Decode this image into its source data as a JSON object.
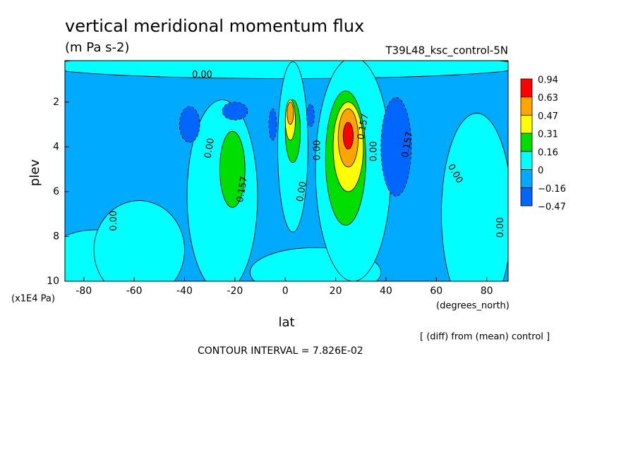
{
  "chart_data": {
    "type": "contour",
    "title": "vertical meridional momentum flux",
    "subtitle": "(m Pa s-2)",
    "dataset": "T39L48_ksc_control-5N",
    "x_label": "lat",
    "y_label": "plev",
    "x_units": "(degrees_north)",
    "y_units": "(x1E4 Pa)",
    "note": "[ (diff) from (mean) control ]",
    "footer": "CONTOUR INTERVAL = 7.826E-02",
    "xlim": [
      -87.5,
      88.5
    ],
    "ylim": [
      10,
      0.15
    ],
    "xticks": [
      -80,
      -60,
      -40,
      -20,
      0,
      20,
      40,
      60,
      80
    ],
    "yticks": [
      2,
      4,
      6,
      8,
      10
    ],
    "levels": [
      0.94,
      0.63,
      0.47,
      0.31,
      0.16,
      0,
      -0.16,
      -0.47
    ],
    "level_labels": [
      "0.94",
      "0.63",
      "0.47",
      "0.31",
      "0.16",
      "0",
      "−0.16",
      "−0.47"
    ],
    "colors": [
      "#ff0000",
      "#ffa500",
      "#ffff00",
      "#00dd00",
      "#00ffff",
      "#00aaff",
      "#0066ff"
    ],
    "background_value": -0.08,
    "regions": [
      {
        "value": 0.08,
        "lat": 0,
        "plev": 0.4,
        "dlat": 95,
        "dplev": 0.55
      },
      {
        "value": 0.08,
        "lat": -75,
        "plev": 9.3,
        "dlat": 22,
        "dplev": 1.6
      },
      {
        "value": 0.08,
        "lat": -58,
        "plev": 8.6,
        "dlat": 18,
        "dplev": 2.2
      },
      {
        "value": 0.08,
        "lat": -25,
        "plev": 6.2,
        "dlat": 14,
        "dplev": 4.3
      },
      {
        "value": 0.08,
        "lat": 12,
        "plev": 9.6,
        "dlat": 26,
        "dplev": 1.1
      },
      {
        "value": 0.08,
        "lat": 3,
        "plev": 4,
        "dlat": 6,
        "dplev": 3.8
      },
      {
        "value": 0.08,
        "lat": 27,
        "plev": 5,
        "dlat": 15,
        "dplev": 5
      },
      {
        "value": 0.08,
        "lat": 76,
        "plev": 7,
        "dlat": 14,
        "dplev": 4.5
      },
      {
        "value": 0.23,
        "lat": -21,
        "plev": 5,
        "dlat": 5,
        "dplev": 1.7
      },
      {
        "value": 0.23,
        "lat": 3,
        "plev": 3.3,
        "dlat": 3,
        "dplev": 1.4
      },
      {
        "value": 0.23,
        "lat": 24,
        "plev": 4.5,
        "dlat": 8,
        "dplev": 3
      },
      {
        "value": 0.39,
        "lat": 25,
        "plev": 4,
        "dlat": 6,
        "dplev": 2
      },
      {
        "value": 0.39,
        "lat": 2,
        "plev": 2.8,
        "dlat": 2,
        "dplev": 0.9
      },
      {
        "value": 0.55,
        "lat": 25,
        "plev": 3.6,
        "dlat": 4,
        "dplev": 1.3
      },
      {
        "value": 0.55,
        "lat": 2,
        "plev": 2.5,
        "dlat": 1.3,
        "dplev": 0.5
      },
      {
        "value": 0.78,
        "lat": 25,
        "plev": 3.5,
        "dlat": 2,
        "dplev": 0.6
      },
      {
        "value": -0.3,
        "lat": -38,
        "plev": 3,
        "dlat": 4,
        "dplev": 0.8
      },
      {
        "value": -0.3,
        "lat": -20,
        "plev": 2.4,
        "dlat": 5,
        "dplev": 0.4
      },
      {
        "value": -0.3,
        "lat": -5,
        "plev": 3,
        "dlat": 1.5,
        "dplev": 0.7
      },
      {
        "value": -0.3,
        "lat": 44,
        "plev": 4,
        "dlat": 6,
        "dplev": 2.2
      },
      {
        "value": -0.3,
        "lat": 10,
        "plev": 2.6,
        "dlat": 1.5,
        "dplev": 0.5
      }
    ],
    "contour_labels": [
      {
        "value": 0,
        "label": "0.00",
        "lat": -33,
        "plev": 0.8
      },
      {
        "value": 0,
        "label": "0.00",
        "lat": -30,
        "plev": 4.06
      },
      {
        "value": 0.157,
        "label": "0.157",
        "lat": -17,
        "plev": 5.9
      },
      {
        "value": 0,
        "label": "0.00",
        "lat": -68,
        "plev": 7.3
      },
      {
        "value": 0,
        "label": "0.00",
        "lat": 6.6,
        "plev": 6
      },
      {
        "value": 0,
        "label": "0.00",
        "lat": 12.8,
        "plev": 4.15
      },
      {
        "value": 0.157,
        "label": "0.157",
        "lat": 31,
        "plev": 3.1
      },
      {
        "value": 0,
        "label": "0.00",
        "lat": 35.2,
        "plev": 4.2
      },
      {
        "value": 0.157,
        "label": "0.157",
        "lat": 48.6,
        "plev": 3.9
      },
      {
        "value": 0,
        "label": "0.00",
        "lat": 67.4,
        "plev": 5.2
      },
      {
        "value": 0,
        "label": "0.00",
        "lat": 85.6,
        "plev": 7.6
      }
    ]
  }
}
